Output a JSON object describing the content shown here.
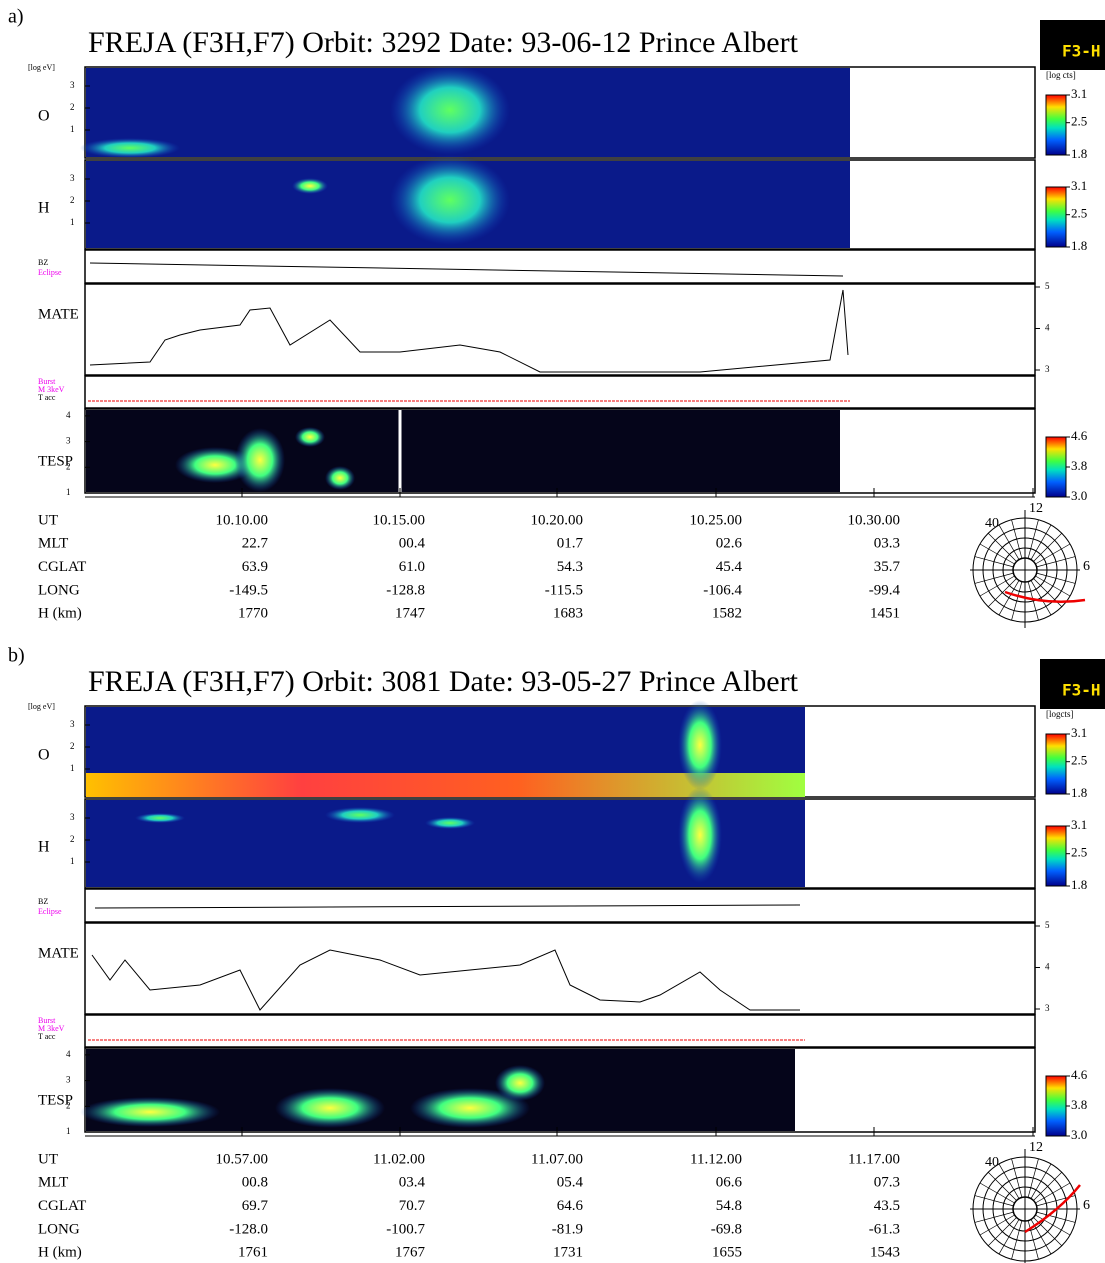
{
  "figures": [
    {
      "label": "a)",
      "title": "FREJA (F3H,F7)  Orbit:  3292 Date: 93-06-12  Prince Albert",
      "logo": "F3-H",
      "energy_unit": "[log eV]",
      "count_unit": "[log cts]",
      "o_label": "O",
      "h_label": "H",
      "bz_label": "BZ",
      "eclipse_label": "Eclipse",
      "mate_label": "MATE",
      "burst_labels": [
        "Burst",
        "M 3keV",
        "T acc"
      ],
      "tesp_label": "TESP",
      "energy_ticks": [
        3,
        2,
        1
      ],
      "mate_ticks": [
        5,
        4,
        3
      ],
      "tesp_ticks": [
        4,
        3,
        2,
        1
      ],
      "o_colorbar": [
        3.1,
        2.5,
        1.8
      ],
      "h_colorbar": [
        3.1,
        2.5,
        1.8
      ],
      "tesp_colorbar": [
        4.6,
        3.8,
        {
          "value": 3.0,
          "label": "3.0"
        }
      ],
      "rows": [
        {
          "name": "UT",
          "values": [
            "10.10.00",
            "10.15.00",
            "10.20.00",
            "10.25.00",
            "10.30.00"
          ]
        },
        {
          "name": "MLT",
          "values": [
            "22.7",
            "00.4",
            "01.7",
            "02.6",
            "03.3"
          ]
        },
        {
          "name": "CGLAT",
          "values": [
            "63.9",
            "61.0",
            "54.3",
            "45.4",
            "35.7"
          ]
        },
        {
          "name": "LONG",
          "values": [
            "-149.5",
            "-128.8",
            "-115.5",
            "-106.4",
            "-99.4"
          ]
        },
        {
          "name": "H (km)",
          "values": [
            "1770",
            "1747",
            "1683",
            "1582",
            "1451"
          ]
        }
      ],
      "polar_labels": [
        "40",
        "12",
        "6"
      ]
    },
    {
      "label": "b)",
      "title": "FREJA (F3H,F7)  Orbit:  3081 Date: 93-05-27  Prince Albert",
      "logo": "F3-H",
      "energy_unit": "[log eV]",
      "count_unit": "[logcts]",
      "o_label": "O",
      "h_label": "H",
      "bz_label": "BZ",
      "eclipse_label": "Eclipse",
      "mate_label": "MATE",
      "burst_labels": [
        "Burst",
        "M 3keV",
        "T acc"
      ],
      "tesp_label": "TESP",
      "energy_ticks": [
        3,
        2,
        1
      ],
      "mate_ticks": [
        5,
        4,
        3
      ],
      "tesp_ticks": [
        4,
        3,
        2,
        1
      ],
      "o_colorbar": [
        3.1,
        2.5,
        1.8
      ],
      "h_colorbar": [
        3.1,
        2.5,
        1.8
      ],
      "tesp_colorbar": [
        4.6,
        3.8,
        {
          "value": 3.0,
          "label": "3.0"
        }
      ],
      "rows": [
        {
          "name": "UT",
          "values": [
            "10.57.00",
            "11.02.00",
            "11.07.00",
            "11.12.00",
            "11.17.00"
          ]
        },
        {
          "name": "MLT",
          "values": [
            "00.8",
            "03.4",
            "05.4",
            "06.6",
            "07.3"
          ]
        },
        {
          "name": "CGLAT",
          "values": [
            "69.7",
            "70.7",
            "64.6",
            "54.8",
            "43.5"
          ]
        },
        {
          "name": "LONG",
          "values": [
            "-128.0",
            "-100.7",
            "-81.9",
            "-69.8",
            "-61.3"
          ]
        },
        {
          "name": "H (km)",
          "values": [
            "1761",
            "1767",
            "1731",
            "1655",
            "1543"
          ]
        }
      ],
      "polar_labels": [
        "40",
        "12",
        "6"
      ]
    }
  ]
}
